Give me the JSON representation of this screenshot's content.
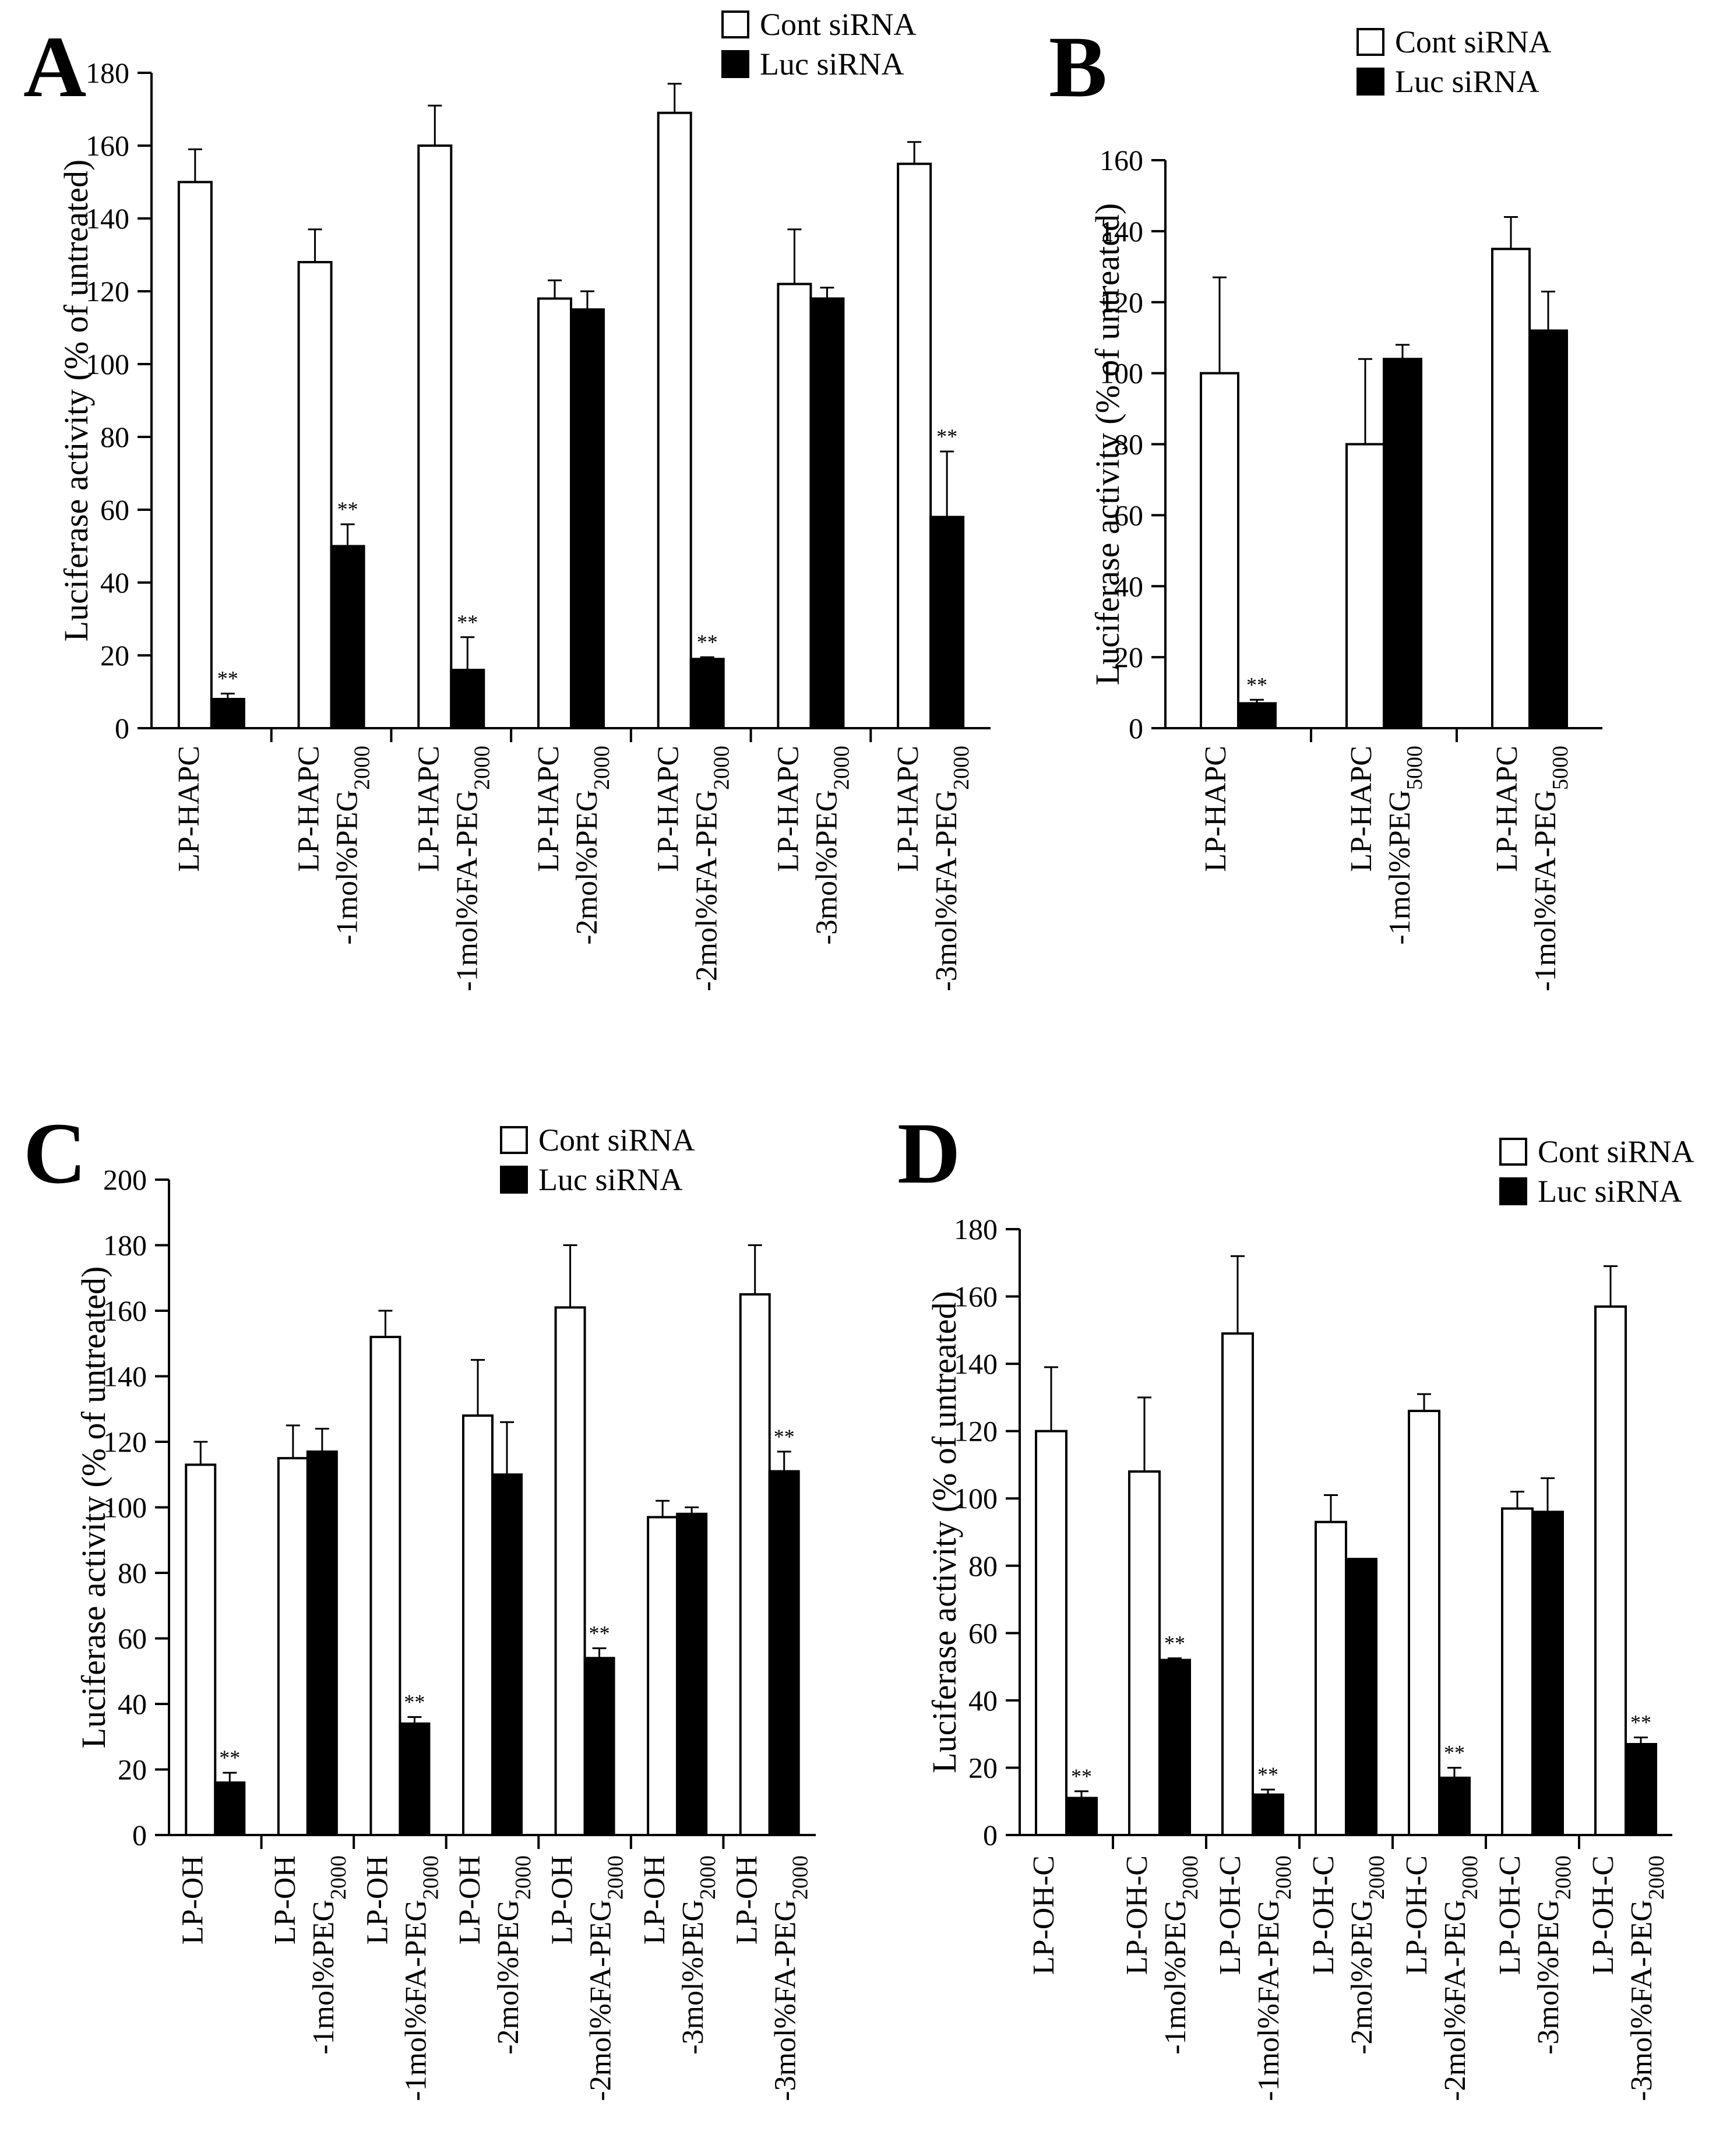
{
  "legend": {
    "cont": "Cont siRNA",
    "luc": "Luc siRNA"
  },
  "colors": {
    "cont": "#ffffff",
    "luc": "#000000",
    "stroke": "#000000"
  },
  "chart_data": [
    {
      "panel": "A",
      "type": "bar",
      "ylabel": "Luciferase activity (% of untreated)",
      "ylim": [
        0,
        180
      ],
      "yticks": [
        0,
        20,
        40,
        60,
        80,
        100,
        120,
        140,
        160,
        180
      ],
      "categories": [
        {
          "line1": "LP-HAPC",
          "line2": "",
          "sub": ""
        },
        {
          "line1": "LP-HAPC",
          "line2": "-1mol%PEG",
          "sub": "2000"
        },
        {
          "line1": "LP-HAPC",
          "line2": "-1mol%FA-PEG",
          "sub": "2000"
        },
        {
          "line1": "LP-HAPC",
          "line2": "-2mol%PEG",
          "sub": "2000"
        },
        {
          "line1": "LP-HAPC",
          "line2": "-2mol%FA-PEG",
          "sub": "2000"
        },
        {
          "line1": "LP-HAPC",
          "line2": "-3mol%PEG",
          "sub": "2000"
        },
        {
          "line1": "LP-HAPC",
          "line2": "-3mol%FA-PEG",
          "sub": "2000"
        }
      ],
      "series": [
        {
          "name": "Cont siRNA",
          "values": [
            150,
            128,
            160,
            118,
            169,
            122,
            155
          ],
          "errors": [
            9,
            9,
            11,
            5,
            8,
            15,
            6
          ]
        },
        {
          "name": "Luc siRNA",
          "values": [
            8,
            50,
            16,
            115,
            19,
            118,
            58
          ],
          "errors": [
            1.5,
            6,
            9,
            5,
            0.5,
            3,
            18
          ],
          "significance": [
            "**",
            "**",
            "**",
            "",
            "**",
            "",
            "**"
          ]
        }
      ]
    },
    {
      "panel": "B",
      "type": "bar",
      "ylabel": "Luciferase activity (% of untreated)",
      "ylim": [
        0,
        160
      ],
      "yticks": [
        0,
        20,
        40,
        60,
        80,
        100,
        120,
        140,
        160
      ],
      "categories": [
        {
          "line1": "LP-HAPC",
          "line2": "",
          "sub": ""
        },
        {
          "line1": "LP-HAPC",
          "line2": "-1mol%PEG",
          "sub": "5000"
        },
        {
          "line1": "LP-HAPC",
          "line2": "-1mol%FA-PEG",
          "sub": "5000"
        }
      ],
      "series": [
        {
          "name": "Cont siRNA",
          "values": [
            100,
            80,
            135
          ],
          "errors": [
            27,
            24,
            9
          ]
        },
        {
          "name": "Luc siRNA",
          "values": [
            7,
            104,
            112
          ],
          "errors": [
            1,
            4,
            11
          ],
          "significance": [
            "**",
            "",
            ""
          ]
        }
      ]
    },
    {
      "panel": "C",
      "type": "bar",
      "ylabel": "Luciferase activity (% of untreated)",
      "ylim": [
        0,
        200
      ],
      "yticks": [
        0,
        20,
        40,
        60,
        80,
        100,
        120,
        140,
        160,
        180,
        200
      ],
      "categories": [
        {
          "line1": "LP-OH",
          "line2": "",
          "sub": ""
        },
        {
          "line1": "LP-OH",
          "line2": "-1mol%PEG",
          "sub": "2000"
        },
        {
          "line1": "LP-OH",
          "line2": "-1mol%FA-PEG",
          "sub": "2000"
        },
        {
          "line1": "LP-OH",
          "line2": "-2mol%PEG",
          "sub": "2000"
        },
        {
          "line1": "LP-OH",
          "line2": "-2mol%FA-PEG",
          "sub": "2000"
        },
        {
          "line1": "LP-OH",
          "line2": "-3mol%PEG",
          "sub": "2000"
        },
        {
          "line1": "LP-OH",
          "line2": "-3mol%FA-PEG",
          "sub": "2000"
        }
      ],
      "series": [
        {
          "name": "Cont siRNA",
          "values": [
            113,
            115,
            152,
            128,
            161,
            97,
            165
          ],
          "errors": [
            7,
            10,
            8,
            17,
            19,
            5,
            15
          ]
        },
        {
          "name": "Luc siRNA",
          "values": [
            16,
            117,
            34,
            110,
            54,
            98,
            111
          ],
          "errors": [
            3,
            7,
            2,
            16,
            3,
            2,
            6
          ],
          "significance": [
            "**",
            "",
            "**",
            "",
            "**",
            "",
            "**"
          ]
        }
      ]
    },
    {
      "panel": "D",
      "type": "bar",
      "ylabel": "Luciferase activity (% of untreated)",
      "ylim": [
        0,
        180
      ],
      "yticks": [
        0,
        20,
        40,
        60,
        80,
        100,
        120,
        140,
        160,
        180
      ],
      "categories": [
        {
          "line1": "LP-OH-C",
          "line2": "",
          "sub": ""
        },
        {
          "line1": "LP-OH-C",
          "line2": "-1mol%PEG",
          "sub": "2000"
        },
        {
          "line1": "LP-OH-C",
          "line2": "-1mol%FA-PEG",
          "sub": "2000"
        },
        {
          "line1": "LP-OH-C",
          "line2": "-2mol%PEG",
          "sub": "2000"
        },
        {
          "line1": "LP-OH-C",
          "line2": "-2mol%FA-PEG",
          "sub": "2000"
        },
        {
          "line1": "LP-OH-C",
          "line2": "-3mol%PEG",
          "sub": "2000"
        },
        {
          "line1": "LP-OH-C",
          "line2": "-3mol%FA-PEG",
          "sub": "2000"
        }
      ],
      "series": [
        {
          "name": "Cont siRNA",
          "values": [
            120,
            108,
            149,
            93,
            126,
            97,
            157
          ],
          "errors": [
            19,
            22,
            23,
            8,
            5,
            5,
            12
          ]
        },
        {
          "name": "Luc siRNA",
          "values": [
            11,
            52,
            12,
            82,
            17,
            96,
            27
          ],
          "errors": [
            2,
            0.5,
            1.5,
            0,
            3,
            10,
            2
          ],
          "significance": [
            "**",
            "**",
            "**",
            "",
            "**",
            "",
            "**"
          ]
        }
      ]
    }
  ]
}
